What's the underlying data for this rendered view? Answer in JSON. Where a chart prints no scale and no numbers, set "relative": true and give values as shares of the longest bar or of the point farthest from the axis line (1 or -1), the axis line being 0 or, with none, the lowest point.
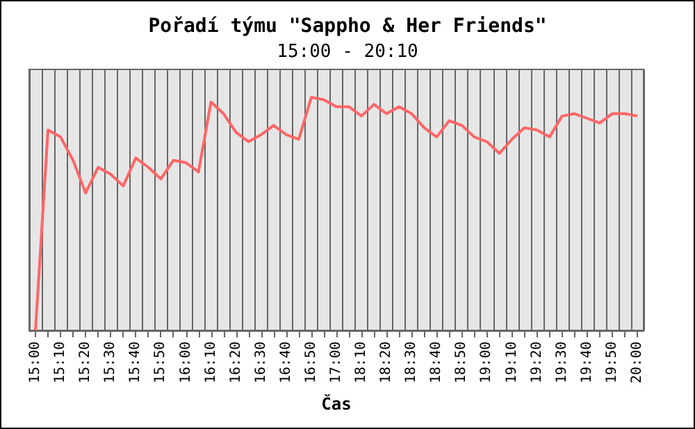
{
  "chart_data": {
    "type": "line",
    "title": "Pořadí týmu \"Sappho & Her Friends\"",
    "subtitle": "15:00 - 20:10",
    "xlabel": "Čas",
    "relative": true,
    "grid": "x",
    "marker": "none",
    "line_style": "solid",
    "categories": [
      "15:00",
      null,
      "15:10",
      null,
      "15:20",
      null,
      "15:30",
      null,
      "15:40",
      null,
      "15:50",
      null,
      "16:00",
      null,
      "16:10",
      null,
      "16:20",
      null,
      "16:30",
      null,
      "16:40",
      null,
      "16:50",
      null,
      "17:00",
      null,
      "18:10",
      null,
      "18:20",
      null,
      "18:30",
      null,
      "18:40",
      null,
      "18:50",
      null,
      "19:00",
      null,
      "19:10",
      null,
      "19:20",
      null,
      "19:30",
      null,
      "19:40",
      null,
      "19:50",
      null,
      "20:00"
    ],
    "series": [
      {
        "color": "#ff6666",
        "values": [
          0,
          0.86,
          0.83,
          0.73,
          0.59,
          0.7,
          0.67,
          0.62,
          0.74,
          0.7,
          0.65,
          0.73,
          0.72,
          0.68,
          0.98,
          0.93,
          0.85,
          0.81,
          0.84,
          0.88,
          0.84,
          0.82,
          1.0,
          0.99,
          0.96,
          0.96,
          0.92,
          0.97,
          0.93,
          0.96,
          0.93,
          0.87,
          0.83,
          0.9,
          0.88,
          0.83,
          0.81,
          0.76,
          0.82,
          0.87,
          0.86,
          0.83,
          0.92,
          0.93,
          0.91,
          0.89,
          0.93,
          0.93,
          0.92
        ]
      }
    ]
  }
}
